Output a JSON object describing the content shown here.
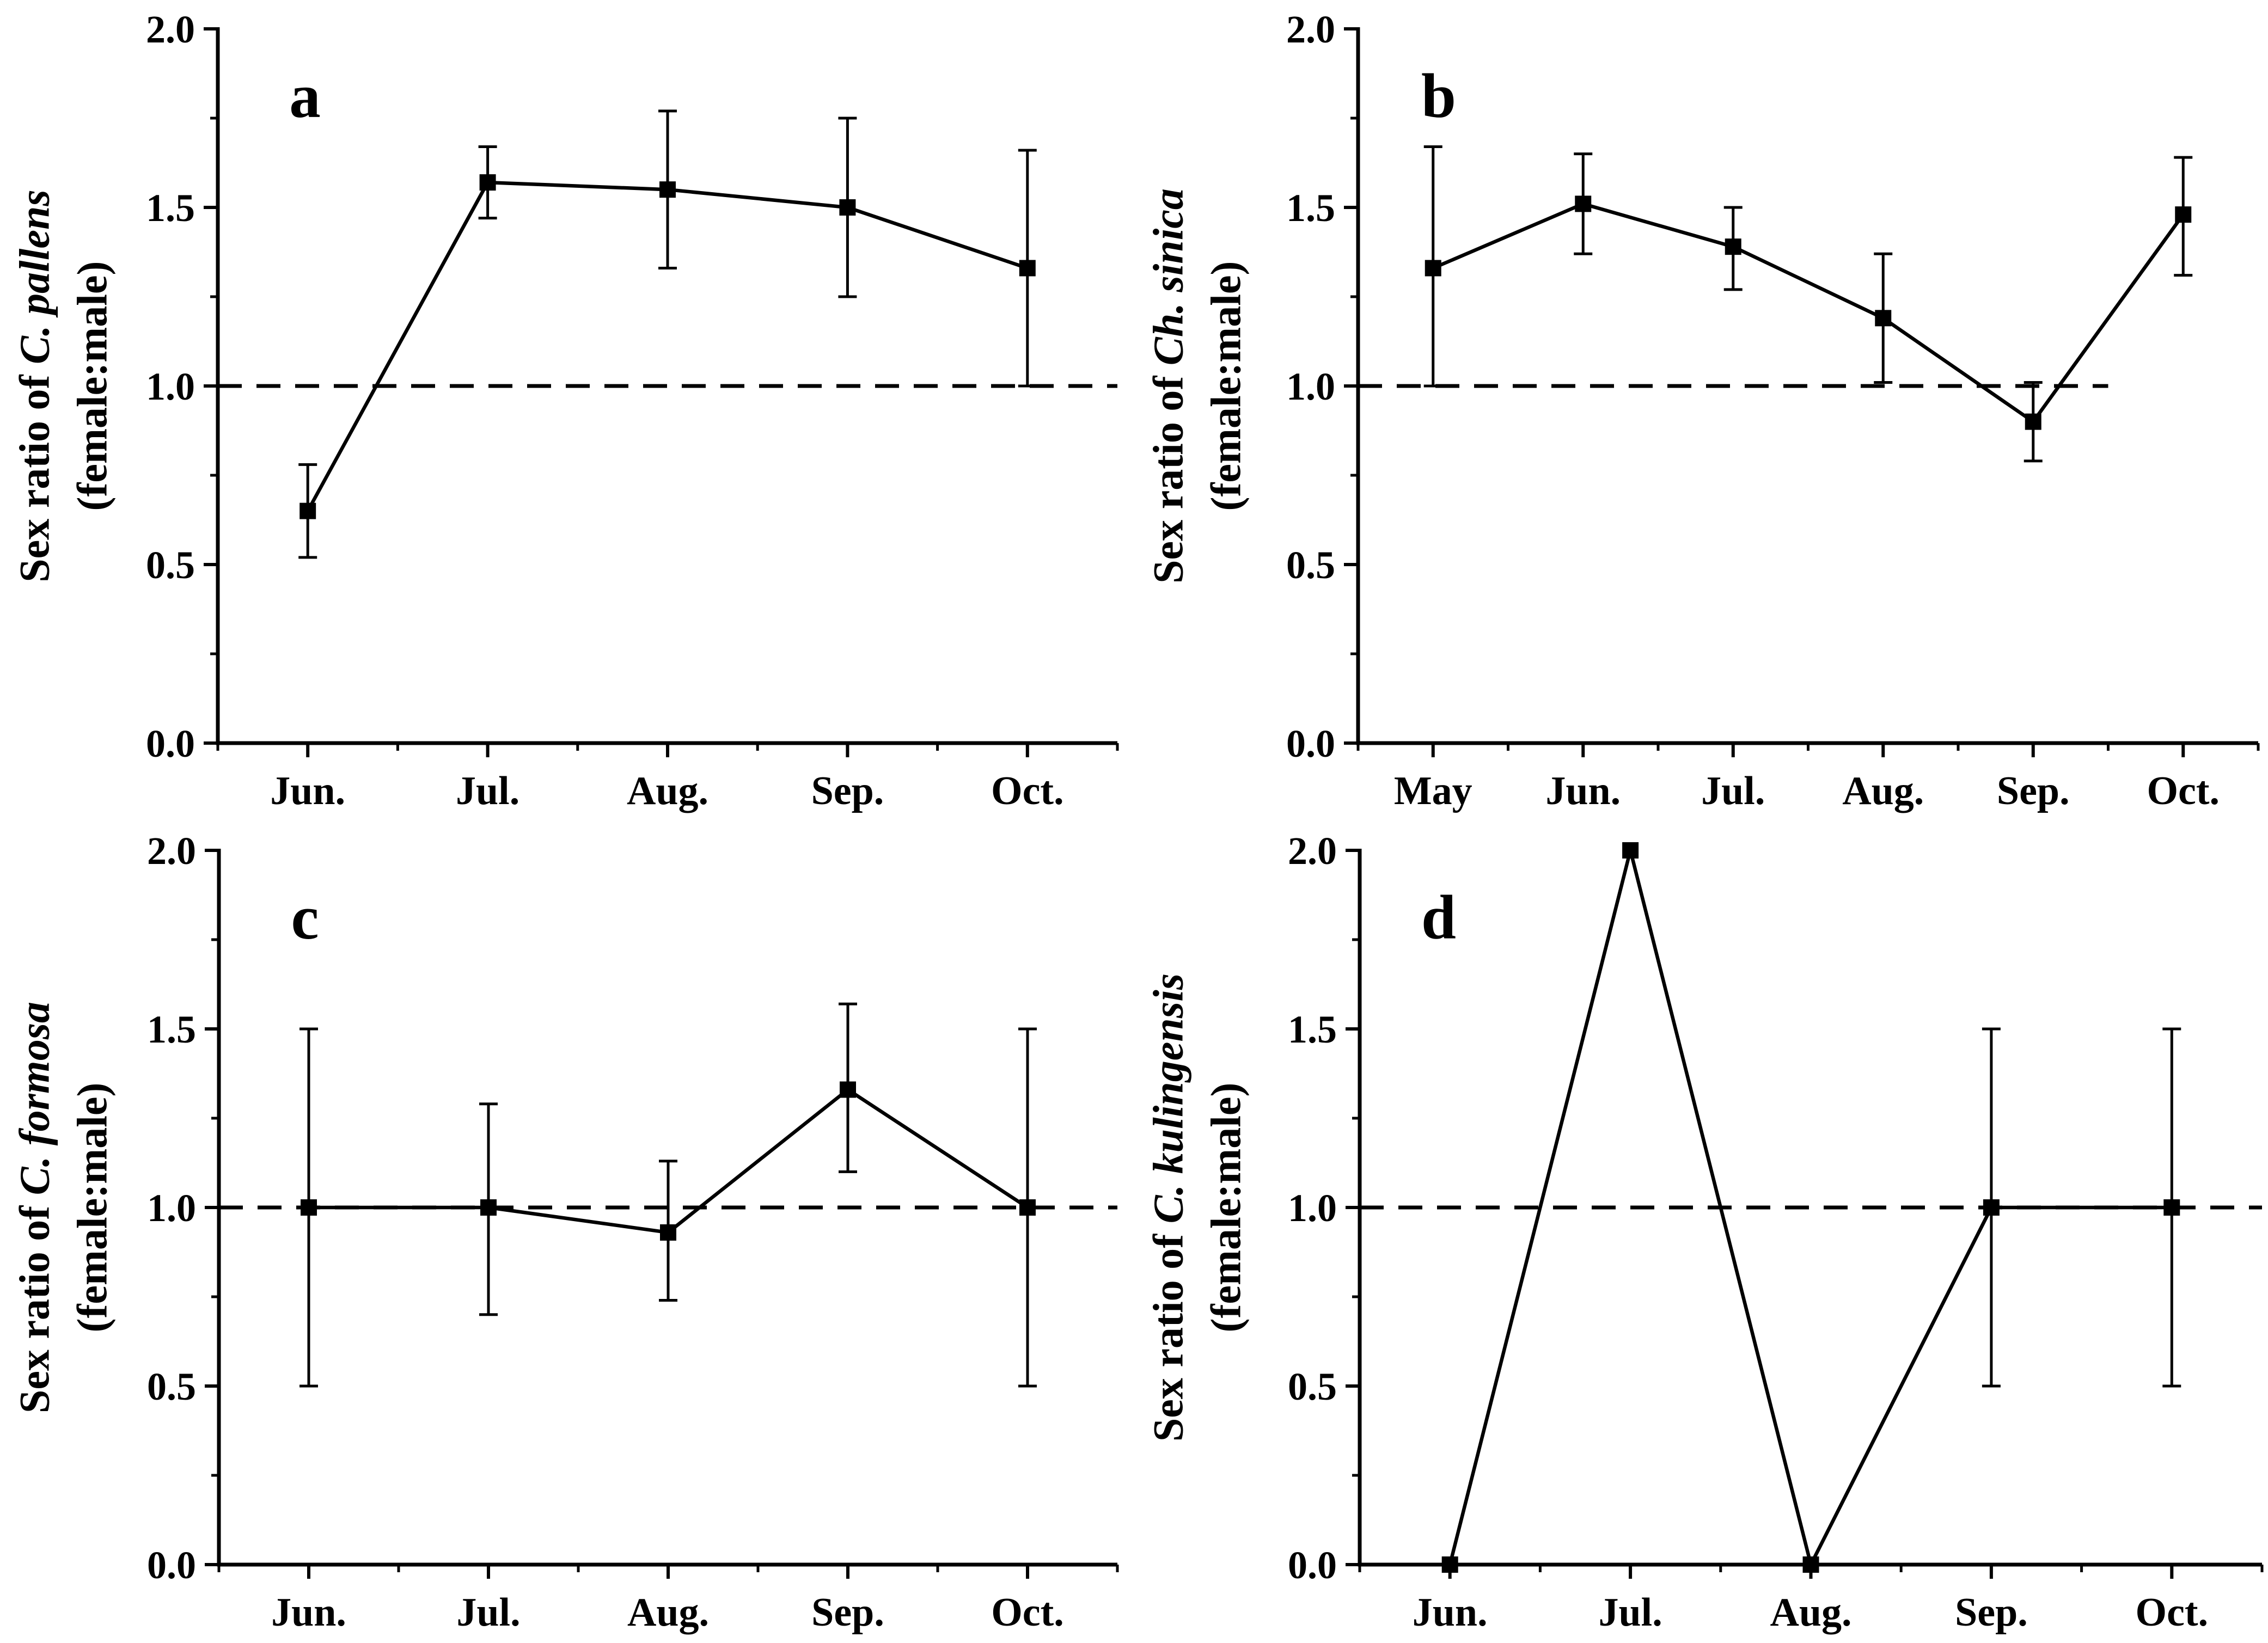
{
  "figure": {
    "background": "#ffffff",
    "ink_color": "#000000",
    "description_visible_panels": [
      "a",
      "b",
      "c",
      "d"
    ]
  },
  "chart_data": [
    {
      "type": "line",
      "panel_letter": "a",
      "ylabel_prefix": "Sex ratio of ",
      "ylabel_species": "C. pallens",
      "ylabel_line2": "(female:male)",
      "xlabel": "",
      "categories": [
        "Jun.",
        "Jul.",
        "Aug.",
        "Sep.",
        "Oct."
      ],
      "values": [
        0.65,
        1.57,
        1.55,
        1.5,
        1.33
      ],
      "err_low": [
        0.52,
        1.47,
        1.33,
        1.25,
        1.0
      ],
      "err_high": [
        0.78,
        1.67,
        1.77,
        1.75,
        1.66
      ],
      "ylim": [
        0,
        2
      ],
      "y_tick_labels": [
        "0.0",
        "0.5",
        "1.0",
        "1.5",
        "2.0"
      ],
      "y_minor_step": 0.25,
      "reference_line_y": 1.0,
      "reference_line_style": "dashed",
      "marker": "square",
      "color": "#000000",
      "grid": false,
      "legend": "none"
    },
    {
      "type": "line",
      "panel_letter": "b",
      "ylabel_prefix": "Sex ratio of ",
      "ylabel_species": "Ch. sinica",
      "ylabel_line2": "(female:male)",
      "xlabel": "",
      "categories": [
        "May",
        "Jun.",
        "Jul.",
        "Aug.",
        "Sep.",
        "Oct."
      ],
      "values": [
        1.33,
        1.51,
        1.39,
        1.19,
        0.9,
        1.48
      ],
      "err_low": [
        1.0,
        1.37,
        1.27,
        1.01,
        0.79,
        1.31
      ],
      "err_high": [
        1.67,
        1.65,
        1.5,
        1.37,
        1.01,
        1.64
      ],
      "ylim": [
        0,
        2
      ],
      "y_tick_labels": [
        "0.0",
        "0.5",
        "1.0",
        "1.5",
        "2.0"
      ],
      "y_minor_step": 0.25,
      "reference_line_y": 1.0,
      "reference_line_style": "dashed",
      "marker": "square",
      "color": "#000000",
      "grid": false,
      "legend": "none"
    },
    {
      "type": "line",
      "panel_letter": "c",
      "ylabel_prefix": "Sex ratio of ",
      "ylabel_species": "C. formosa",
      "ylabel_line2": "(female:male)",
      "xlabel": "",
      "categories": [
        "Jun.",
        "Jul.",
        "Aug.",
        "Sep.",
        "Oct."
      ],
      "values": [
        1.0,
        1.0,
        0.93,
        1.33,
        1.0
      ],
      "err_low": [
        0.5,
        0.7,
        0.74,
        1.1,
        0.5
      ],
      "err_high": [
        1.5,
        1.29,
        1.13,
        1.57,
        1.5
      ],
      "ylim": [
        0,
        2
      ],
      "y_tick_labels": [
        "0.0",
        "0.5",
        "1.0",
        "1.5",
        "2.0"
      ],
      "y_minor_step": 0.25,
      "reference_line_y": 1.0,
      "reference_line_style": "dashed",
      "marker": "square",
      "color": "#000000",
      "grid": false,
      "legend": "none"
    },
    {
      "type": "line",
      "panel_letter": "d",
      "ylabel_prefix": "Sex ratio of ",
      "ylabel_species": "C. kulingensis",
      "ylabel_line2": "(female:male)",
      "xlabel": "",
      "categories": [
        "Jun.",
        "Jul.",
        "Aug.",
        "Sep.",
        "Oct."
      ],
      "values": [
        0.0,
        2.0,
        0.0,
        1.0,
        1.0
      ],
      "err_low": [
        null,
        null,
        null,
        0.5,
        0.5
      ],
      "err_high": [
        null,
        null,
        null,
        1.5,
        1.5
      ],
      "ylim": [
        0,
        2
      ],
      "y_tick_labels": [
        "0.0",
        "0.5",
        "1.0",
        "1.5",
        "2.0"
      ],
      "y_minor_step": 0.25,
      "reference_line_y": 1.0,
      "reference_line_style": "dashed",
      "marker": "square",
      "color": "#000000",
      "grid": false,
      "legend": "none"
    }
  ]
}
